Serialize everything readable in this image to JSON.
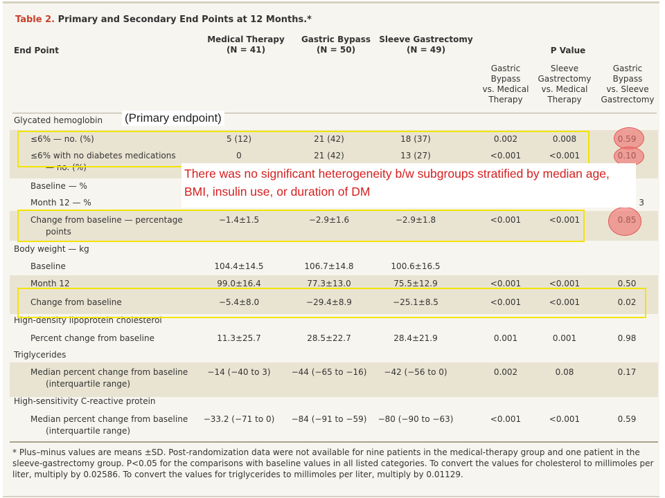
{
  "table": {
    "title_prefix": "Table 2.",
    "title_rest": "Primary and Secondary End Points at 12 Months.*",
    "headers": {
      "end_point": "End Point",
      "medical_therapy": "Medical Therapy",
      "medical_therapy_n": "(N = 41)",
      "gastric_bypass": "Gastric Bypass",
      "gastric_bypass_n": "(N = 50)",
      "sleeve_gastrectomy": "Sleeve Gastrectomy",
      "sleeve_gastrectomy_n": "(N = 49)",
      "p_value": "P Value",
      "p1": [
        "Gastric",
        "Bypass",
        "vs. Medical",
        "Therapy"
      ],
      "p2": [
        "Sleeve",
        "Gastrectomy",
        "vs. Medical",
        "Therapy"
      ],
      "p3": [
        "Gastric",
        "Bypass",
        "vs. Sleeve",
        "Gastrectomy"
      ]
    },
    "rows": [
      {
        "label": "Glycated hemoglobin",
        "cells": [
          "",
          "",
          "",
          "",
          "",
          ""
        ]
      },
      {
        "label": "≤6% — no. (%)",
        "cells": [
          "5 (12)",
          "21 (42)",
          "18 (37)",
          "0.002",
          "0.008",
          "0.59"
        ]
      },
      {
        "label": "≤6% with no diabetes medications",
        "label2": "— no. (%)",
        "cells": [
          "0",
          "21 (42)",
          "13 (27)",
          "<0.001",
          "<0.001",
          "0.10"
        ]
      },
      {
        "label": "Baseline — %",
        "cells": [
          "",
          "",
          "",
          "",
          "",
          ""
        ]
      },
      {
        "label": "Month 12 — %",
        "cells": [
          "",
          "",
          "",
          "",
          "",
          "3"
        ]
      },
      {
        "label": "Change from baseline — percentage",
        "label2": "points",
        "cells": [
          "−1.4±1.5",
          "−2.9±1.6",
          "−2.9±1.8",
          "<0.001",
          "<0.001",
          "0.85"
        ]
      },
      {
        "label": "Body weight — kg",
        "cells": [
          "",
          "",
          "",
          "",
          "",
          ""
        ]
      },
      {
        "label": "Baseline",
        "cells": [
          "104.4±14.5",
          "106.7±14.8",
          "100.6±16.5",
          "",
          "",
          ""
        ]
      },
      {
        "label": "Month 12",
        "cells": [
          "99.0±16.4",
          "77.3±13.0",
          "75.5±12.9",
          "<0.001",
          "<0.001",
          "0.50"
        ]
      },
      {
        "label": "Change from baseline",
        "cells": [
          "−5.4±8.0",
          "−29.4±8.9",
          "−25.1±8.5",
          "<0.001",
          "<0.001",
          "0.02"
        ]
      },
      {
        "label": "High-density lipoprotein cholesterol",
        "cells": [
          "",
          "",
          "",
          "",
          "",
          ""
        ]
      },
      {
        "label": "Percent change from baseline",
        "cells": [
          "11.3±25.7",
          "28.5±22.7",
          "28.4±21.9",
          "0.001",
          "0.001",
          "0.98"
        ]
      },
      {
        "label": "Triglycerides",
        "cells": [
          "",
          "",
          "",
          "",
          "",
          ""
        ]
      },
      {
        "label": "Median percent change from baseline",
        "label2": "(interquartile range)",
        "cells": [
          "−14 (−40 to 3)",
          "−44 (−65 to −16)",
          "−42 (−56 to 0)",
          "0.002",
          "0.08",
          "0.17"
        ]
      },
      {
        "label": "High-sensitivity C-reactive protein",
        "cells": [
          "",
          "",
          "",
          "",
          "",
          ""
        ]
      },
      {
        "label": "Median percent change from baseline",
        "label2": "(interquartile range)",
        "cells": [
          "−33.2 (−71 to 0)",
          "−84 (−91 to −59)",
          "−80 (−90 to −63)",
          "<0.001",
          "<0.001",
          "0.59"
        ]
      }
    ],
    "footnote": "* Plus–minus values are means ±SD. Post-randomization data were not available for nine patients in the medical-therapy group and one patient in the sleeve-gastrectomy group. P<0.05 for the comparisons with baseline values in all listed categories. To convert the values for cholesterol to millimoles per liter, multiply by 0.02586. To convert the values for triglycerides to millimoles per liter, multiply by 0.01129."
  },
  "annotations": {
    "primary_note": "(Primary endpoint)",
    "callout": "There was no significant heterogeneity b/w subgroups stratified by median age, BMI, insulin use, or duration of DM"
  }
}
